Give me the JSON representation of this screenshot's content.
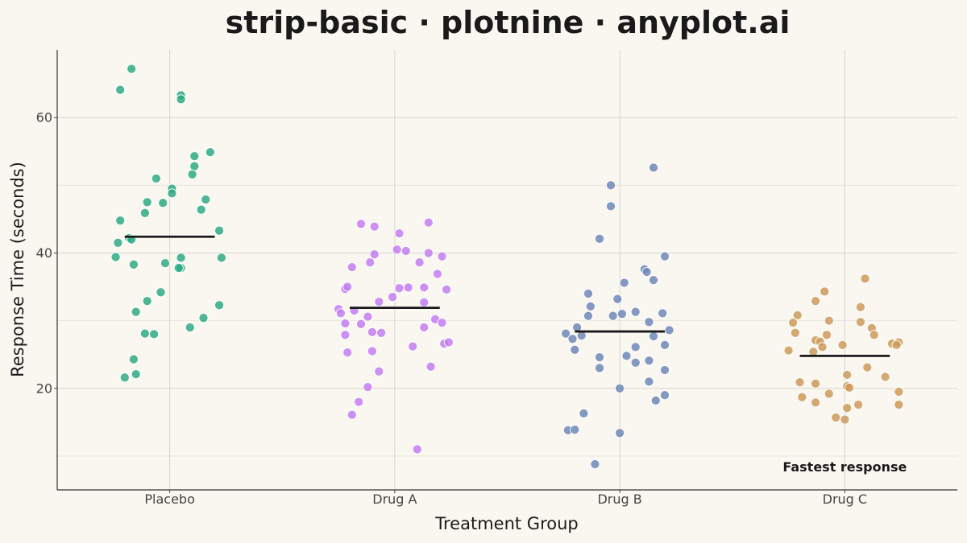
{
  "chart_data": {
    "type": "scatter",
    "subtype": "strip",
    "title": "strip-basic · plotnine · anyplot.ai",
    "xlabel": "Treatment Group",
    "ylabel": "Response Time (seconds)",
    "categories": [
      "Placebo",
      "Drug A",
      "Drug B",
      "Drug C"
    ],
    "ylim": [
      5,
      70
    ],
    "yticks": [
      20,
      40,
      60
    ],
    "yticks_minor": [
      10,
      30,
      50
    ],
    "grid": true,
    "legend": "none",
    "mean_line_color": "#1a1a1a",
    "annotation": {
      "text": "Fastest response",
      "category": "Drug C",
      "y": 8.3
    },
    "series": [
      {
        "category": "Placebo",
        "color": "#2eaa84",
        "mean": 42.4,
        "points": [
          {
            "x": -0.22,
            "y": 64.1
          },
          {
            "x": -0.17,
            "y": 67.2
          },
          {
            "x": 0.05,
            "y": 63.3
          },
          {
            "x": 0.05,
            "y": 62.7
          },
          {
            "x": 0.18,
            "y": 54.9
          },
          {
            "x": 0.11,
            "y": 54.3
          },
          {
            "x": 0.11,
            "y": 52.8
          },
          {
            "x": 0.1,
            "y": 51.6
          },
          {
            "x": -0.06,
            "y": 51.0
          },
          {
            "x": 0.01,
            "y": 49.5
          },
          {
            "x": 0.01,
            "y": 48.8
          },
          {
            "x": 0.16,
            "y": 47.9
          },
          {
            "x": -0.1,
            "y": 47.5
          },
          {
            "x": -0.03,
            "y": 47.4
          },
          {
            "x": 0.14,
            "y": 46.4
          },
          {
            "x": -0.11,
            "y": 45.9
          },
          {
            "x": -0.22,
            "y": 44.8
          },
          {
            "x": 0.22,
            "y": 43.3
          },
          {
            "x": -0.18,
            "y": 42.2
          },
          {
            "x": -0.17,
            "y": 42.0
          },
          {
            "x": -0.23,
            "y": 41.5
          },
          {
            "x": -0.24,
            "y": 39.4
          },
          {
            "x": 0.05,
            "y": 39.3
          },
          {
            "x": 0.23,
            "y": 39.3
          },
          {
            "x": -0.16,
            "y": 38.3
          },
          {
            "x": -0.02,
            "y": 38.5
          },
          {
            "x": 0.05,
            "y": 37.8
          },
          {
            "x": 0.04,
            "y": 37.8
          },
          {
            "x": -0.04,
            "y": 34.2
          },
          {
            "x": -0.1,
            "y": 32.9
          },
          {
            "x": 0.22,
            "y": 32.3
          },
          {
            "x": -0.15,
            "y": 31.3
          },
          {
            "x": 0.15,
            "y": 30.4
          },
          {
            "x": 0.09,
            "y": 29.0
          },
          {
            "x": -0.11,
            "y": 28.1
          },
          {
            "x": -0.07,
            "y": 28.0
          },
          {
            "x": -0.16,
            "y": 24.3
          },
          {
            "x": -0.15,
            "y": 22.1
          },
          {
            "x": -0.2,
            "y": 21.6
          }
        ]
      },
      {
        "category": "Drug A",
        "color": "#c27ef2",
        "mean": 31.9,
        "points": [
          {
            "x": -0.15,
            "y": 44.3
          },
          {
            "x": -0.09,
            "y": 43.9
          },
          {
            "x": 0.15,
            "y": 44.5
          },
          {
            "x": 0.02,
            "y": 42.9
          },
          {
            "x": 0.01,
            "y": 40.5
          },
          {
            "x": 0.05,
            "y": 40.3
          },
          {
            "x": 0.15,
            "y": 40.0
          },
          {
            "x": -0.09,
            "y": 39.8
          },
          {
            "x": 0.21,
            "y": 39.5
          },
          {
            "x": -0.11,
            "y": 38.6
          },
          {
            "x": 0.11,
            "y": 38.6
          },
          {
            "x": -0.19,
            "y": 37.9
          },
          {
            "x": 0.19,
            "y": 36.9
          },
          {
            "x": -0.22,
            "y": 34.7
          },
          {
            "x": -0.21,
            "y": 35.0
          },
          {
            "x": 0.02,
            "y": 34.8
          },
          {
            "x": 0.06,
            "y": 34.9
          },
          {
            "x": 0.13,
            "y": 34.9
          },
          {
            "x": 0.23,
            "y": 34.6
          },
          {
            "x": -0.01,
            "y": 33.5
          },
          {
            "x": -0.07,
            "y": 32.8
          },
          {
            "x": 0.13,
            "y": 32.7
          },
          {
            "x": -0.25,
            "y": 31.7
          },
          {
            "x": -0.18,
            "y": 31.5
          },
          {
            "x": -0.24,
            "y": 31.1
          },
          {
            "x": -0.12,
            "y": 30.6
          },
          {
            "x": 0.18,
            "y": 30.2
          },
          {
            "x": -0.22,
            "y": 29.6
          },
          {
            "x": -0.15,
            "y": 29.5
          },
          {
            "x": 0.21,
            "y": 29.7
          },
          {
            "x": 0.13,
            "y": 29.0
          },
          {
            "x": -0.1,
            "y": 28.3
          },
          {
            "x": -0.06,
            "y": 28.2
          },
          {
            "x": -0.22,
            "y": 27.9
          },
          {
            "x": 0.22,
            "y": 26.6
          },
          {
            "x": 0.24,
            "y": 26.8
          },
          {
            "x": 0.08,
            "y": 26.2
          },
          {
            "x": -0.21,
            "y": 25.3
          },
          {
            "x": -0.1,
            "y": 25.5
          },
          {
            "x": 0.16,
            "y": 23.2
          },
          {
            "x": -0.07,
            "y": 22.5
          },
          {
            "x": -0.12,
            "y": 20.2
          },
          {
            "x": -0.16,
            "y": 18.0
          },
          {
            "x": -0.19,
            "y": 16.1
          },
          {
            "x": 0.1,
            "y": 11.0
          }
        ]
      },
      {
        "category": "Drug B",
        "color": "#6f88b6",
        "mean": 28.4,
        "points": [
          {
            "x": 0.15,
            "y": 52.6
          },
          {
            "x": -0.04,
            "y": 50.0
          },
          {
            "x": -0.04,
            "y": 46.9
          },
          {
            "x": -0.09,
            "y": 42.1
          },
          {
            "x": 0.2,
            "y": 39.5
          },
          {
            "x": 0.11,
            "y": 37.6
          },
          {
            "x": 0.12,
            "y": 37.2
          },
          {
            "x": 0.15,
            "y": 36.0
          },
          {
            "x": 0.02,
            "y": 35.6
          },
          {
            "x": -0.14,
            "y": 34.0
          },
          {
            "x": -0.01,
            "y": 33.2
          },
          {
            "x": -0.13,
            "y": 32.1
          },
          {
            "x": 0.07,
            "y": 31.3
          },
          {
            "x": 0.01,
            "y": 31.0
          },
          {
            "x": 0.19,
            "y": 31.1
          },
          {
            "x": -0.14,
            "y": 30.7
          },
          {
            "x": -0.03,
            "y": 30.7
          },
          {
            "x": 0.13,
            "y": 29.8
          },
          {
            "x": -0.19,
            "y": 29.0
          },
          {
            "x": 0.22,
            "y": 28.6
          },
          {
            "x": -0.24,
            "y": 28.1
          },
          {
            "x": -0.17,
            "y": 27.8
          },
          {
            "x": 0.15,
            "y": 27.7
          },
          {
            "x": -0.21,
            "y": 27.3
          },
          {
            "x": 0.2,
            "y": 26.4
          },
          {
            "x": 0.07,
            "y": 26.1
          },
          {
            "x": -0.2,
            "y": 25.7
          },
          {
            "x": -0.09,
            "y": 24.6
          },
          {
            "x": 0.03,
            "y": 24.8
          },
          {
            "x": 0.13,
            "y": 24.1
          },
          {
            "x": 0.07,
            "y": 23.8
          },
          {
            "x": -0.09,
            "y": 23.0
          },
          {
            "x": 0.2,
            "y": 22.7
          },
          {
            "x": 0.13,
            "y": 21.0
          },
          {
            "x": 0.0,
            "y": 20.0
          },
          {
            "x": 0.2,
            "y": 19.0
          },
          {
            "x": 0.16,
            "y": 18.2
          },
          {
            "x": -0.16,
            "y": 16.3
          },
          {
            "x": -0.23,
            "y": 13.8
          },
          {
            "x": -0.2,
            "y": 13.9
          },
          {
            "x": 0.0,
            "y": 13.4
          },
          {
            "x": -0.11,
            "y": 8.8
          }
        ]
      },
      {
        "category": "Drug C",
        "color": "#cd9a5a",
        "mean": 24.8,
        "points": [
          {
            "x": 0.09,
            "y": 36.2
          },
          {
            "x": -0.09,
            "y": 34.3
          },
          {
            "x": -0.13,
            "y": 32.9
          },
          {
            "x": 0.07,
            "y": 32.0
          },
          {
            "x": -0.21,
            "y": 30.8
          },
          {
            "x": -0.07,
            "y": 30.0
          },
          {
            "x": 0.07,
            "y": 29.8
          },
          {
            "x": -0.23,
            "y": 29.7
          },
          {
            "x": 0.12,
            "y": 28.9
          },
          {
            "x": -0.22,
            "y": 28.2
          },
          {
            "x": -0.08,
            "y": 27.9
          },
          {
            "x": 0.13,
            "y": 27.9
          },
          {
            "x": -0.13,
            "y": 27.1
          },
          {
            "x": -0.11,
            "y": 26.9
          },
          {
            "x": 0.21,
            "y": 26.6
          },
          {
            "x": 0.24,
            "y": 26.8
          },
          {
            "x": 0.23,
            "y": 26.4
          },
          {
            "x": -0.01,
            "y": 26.4
          },
          {
            "x": -0.1,
            "y": 26.1
          },
          {
            "x": -0.25,
            "y": 25.6
          },
          {
            "x": -0.14,
            "y": 25.4
          },
          {
            "x": 0.1,
            "y": 23.1
          },
          {
            "x": 0.01,
            "y": 22.0
          },
          {
            "x": 0.18,
            "y": 21.7
          },
          {
            "x": -0.2,
            "y": 20.9
          },
          {
            "x": -0.13,
            "y": 20.7
          },
          {
            "x": 0.01,
            "y": 20.3
          },
          {
            "x": 0.02,
            "y": 20.1
          },
          {
            "x": 0.24,
            "y": 19.5
          },
          {
            "x": -0.07,
            "y": 19.2
          },
          {
            "x": -0.19,
            "y": 18.7
          },
          {
            "x": -0.13,
            "y": 17.9
          },
          {
            "x": 0.06,
            "y": 17.6
          },
          {
            "x": 0.24,
            "y": 17.6
          },
          {
            "x": 0.01,
            "y": 17.1
          },
          {
            "x": -0.04,
            "y": 15.7
          },
          {
            "x": 0.0,
            "y": 15.4
          }
        ]
      }
    ]
  }
}
